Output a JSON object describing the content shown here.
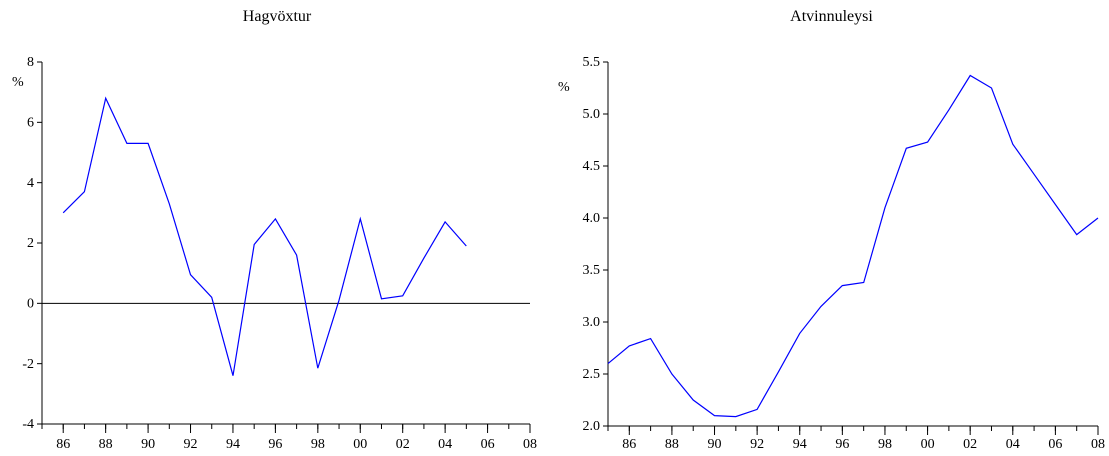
{
  "chart_data": [
    {
      "type": "line",
      "title": "Hagvöxtur",
      "unit_label": "%",
      "xlabel": "",
      "ylabel": "",
      "x_tick_labels": [
        "86",
        "88",
        "90",
        "92",
        "94",
        "96",
        "98",
        "00",
        "02",
        "04",
        "06",
        "08"
      ],
      "x_tick_years": [
        1986,
        1988,
        1990,
        1992,
        1994,
        1996,
        1998,
        2000,
        2002,
        2004,
        2006,
        2008
      ],
      "xlim": [
        1985,
        2008
      ],
      "y_ticks": [
        -4,
        -2,
        0,
        2,
        4,
        6,
        8
      ],
      "y_tick_labels": [
        "-4",
        "-2",
        "0",
        "2",
        "4",
        "6",
        "8"
      ],
      "ylim": [
        -4,
        8
      ],
      "zero_line": true,
      "line_color": "#0000ff",
      "series": [
        {
          "x": [
            1986,
            1987,
            1988,
            1989,
            1990,
            1991,
            1992,
            1993,
            1994,
            1995,
            1996,
            1997,
            1998,
            1999,
            2000,
            2001,
            2002,
            2003,
            2004,
            2005
          ],
          "values": [
            3.0,
            3.7,
            6.8,
            5.3,
            5.3,
            3.3,
            0.95,
            0.2,
            -2.4,
            1.95,
            2.8,
            1.6,
            -2.15,
            0.1,
            2.8,
            0.15,
            0.25,
            1.5,
            2.7,
            1.9
          ]
        }
      ]
    },
    {
      "type": "line",
      "title": "Atvinnuleysi",
      "unit_label": "%",
      "xlabel": "",
      "ylabel": "",
      "x_tick_labels": [
        "86",
        "88",
        "90",
        "92",
        "94",
        "96",
        "98",
        "00",
        "02",
        "04",
        "06",
        "08"
      ],
      "x_tick_years": [
        1986,
        1988,
        1990,
        1992,
        1994,
        1996,
        1998,
        2000,
        2002,
        2004,
        2006,
        2008
      ],
      "xlim": [
        1985,
        2008
      ],
      "y_ticks": [
        2.0,
        2.5,
        3.0,
        3.5,
        4.0,
        4.5,
        5.0,
        5.5
      ],
      "y_tick_labels": [
        "2.0",
        "2.5",
        "3.0",
        "3.5",
        "4.0",
        "4.5",
        "5.0",
        "5.5"
      ],
      "ylim": [
        2.0,
        5.5
      ],
      "zero_line": false,
      "line_color": "#0000ff",
      "series": [
        {
          "x": [
            1985,
            1986,
            1987,
            1988,
            1989,
            1990,
            1991,
            1992,
            1993,
            1994,
            1995,
            1996,
            1997,
            1998,
            1999,
            2000,
            2001,
            2002,
            2003,
            2004,
            2005,
            2006,
            2007,
            2008
          ],
          "values": [
            2.6,
            2.77,
            2.84,
            2.5,
            2.25,
            2.1,
            2.09,
            2.16,
            2.52,
            2.89,
            3.15,
            3.35,
            3.38,
            4.1,
            4.67,
            4.73,
            5.04,
            5.37,
            5.25,
            4.71,
            4.42,
            4.13,
            3.84,
            4.0
          ]
        }
      ]
    }
  ]
}
